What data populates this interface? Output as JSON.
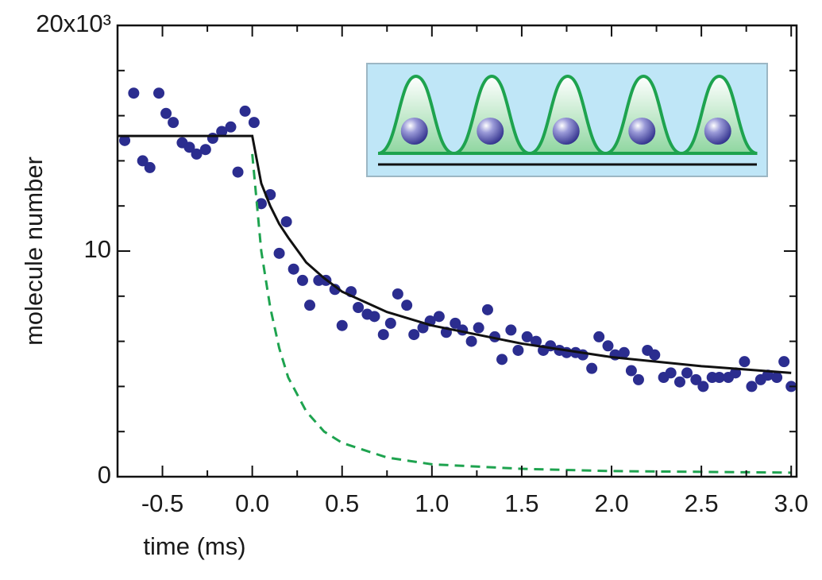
{
  "chart_data": {
    "type": "scatter",
    "xlabel": "time (ms)",
    "ylabel": "molecule number",
    "xlim": [
      -0.75,
      3.03
    ],
    "ylim": [
      0,
      20
    ],
    "xticks": [
      -0.5,
      {
        "value": 0,
        "label": "0.0"
      },
      0.5,
      {
        "value": 1,
        "label": "1.0"
      },
      1.5,
      {
        "value": 2,
        "label": "2.0"
      },
      2.5,
      {
        "value": 3,
        "label": "3.0"
      }
    ],
    "yticks": [
      0,
      10,
      {
        "value": 20,
        "label": "20x10³"
      }
    ],
    "minor_xticks": [
      -0.75,
      -0.25,
      0.25,
      0.75,
      1.25,
      1.75,
      2.25,
      2.75
    ],
    "minor_yticks": [
      2,
      4,
      6,
      8,
      12,
      14,
      16,
      18
    ],
    "series": [
      {
        "style": "markers",
        "color": "#2b2d8f",
        "x": [
          -0.71,
          -0.66,
          -0.61,
          -0.57,
          -0.52,
          -0.48,
          -0.44,
          -0.39,
          -0.35,
          -0.31,
          -0.26,
          -0.22,
          -0.17,
          -0.12,
          -0.08,
          -0.04,
          0.01,
          0.05,
          0.1,
          0.15,
          0.19,
          0.23,
          0.28,
          0.32,
          0.37,
          0.41,
          0.46,
          0.5,
          0.55,
          0.59,
          0.64,
          0.68,
          0.73,
          0.77,
          0.81,
          0.86,
          0.9,
          0.95,
          0.99,
          1.04,
          1.08,
          1.13,
          1.17,
          1.22,
          1.26,
          1.31,
          1.35,
          1.39,
          1.44,
          1.48,
          1.53,
          1.58,
          1.62,
          1.66,
          1.71,
          1.75,
          1.8,
          1.84,
          1.89,
          1.93,
          1.98,
          2.02,
          2.07,
          2.11,
          2.15,
          2.2,
          2.24,
          2.29,
          2.33,
          2.38,
          2.42,
          2.47,
          2.51,
          2.56,
          2.6,
          2.65,
          2.69,
          2.74,
          2.78,
          2.83,
          2.87,
          2.92,
          2.96,
          3.0
        ],
        "values": [
          14.9,
          17.0,
          14.0,
          13.7,
          17.0,
          16.1,
          15.7,
          14.8,
          14.6,
          14.3,
          14.5,
          15.0,
          15.3,
          15.5,
          13.5,
          16.2,
          15.7,
          12.1,
          12.5,
          9.9,
          11.3,
          9.2,
          8.7,
          7.6,
          8.7,
          8.7,
          8.3,
          6.7,
          8.2,
          7.5,
          7.2,
          7.1,
          6.3,
          6.8,
          8.1,
          7.6,
          6.3,
          6.6,
          6.9,
          7.1,
          6.4,
          6.8,
          6.5,
          6.0,
          6.6,
          7.4,
          6.2,
          5.2,
          6.5,
          5.6,
          6.2,
          6.0,
          5.6,
          5.8,
          5.6,
          5.5,
          5.5,
          5.4,
          4.8,
          6.2,
          5.8,
          5.4,
          5.5,
          4.7,
          4.3,
          5.6,
          5.4,
          4.4,
          4.6,
          4.2,
          4.6,
          4.3,
          4.0,
          4.4,
          4.4,
          4.4,
          4.6,
          5.1,
          4.0,
          4.3,
          4.5,
          4.4,
          5.1,
          4.0
        ]
      },
      {
        "style": "line",
        "color": "#111111",
        "x": [
          -0.75,
          0,
          0.05,
          0.1,
          0.15,
          0.2,
          0.3,
          0.4,
          0.5,
          0.75,
          1.0,
          1.25,
          1.5,
          2.0,
          2.5,
          3.0
        ],
        "values": [
          15.1,
          15.1,
          13.0,
          12.0,
          11.2,
          10.6,
          9.5,
          8.8,
          8.2,
          7.3,
          6.7,
          6.3,
          5.9,
          5.3,
          4.9,
          4.6
        ]
      },
      {
        "style": "dashed",
        "color": "#1ea34f",
        "x": [
          0,
          0.05,
          0.1,
          0.15,
          0.2,
          0.3,
          0.4,
          0.5,
          0.75,
          1.0,
          1.5,
          2.0,
          3.0
        ],
        "values": [
          14.3,
          10.0,
          7.5,
          5.7,
          4.4,
          2.9,
          2.0,
          1.5,
          0.85,
          0.55,
          0.35,
          0.25,
          0.18
        ]
      }
    ]
  }
}
